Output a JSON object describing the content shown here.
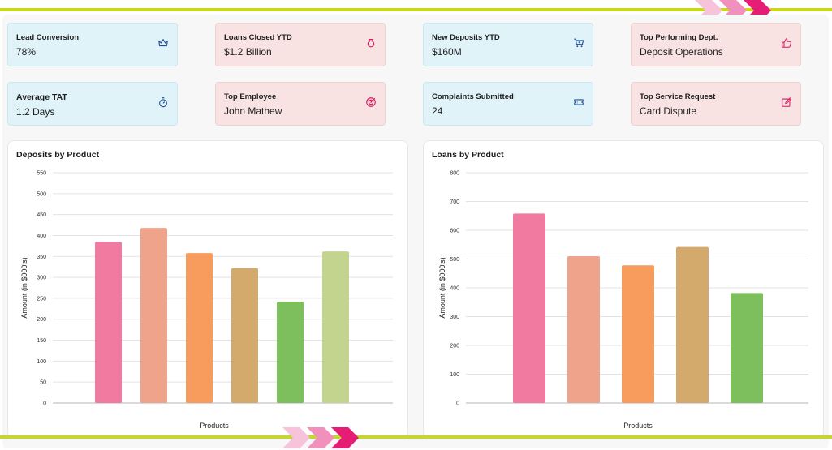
{
  "kpis": [
    {
      "label": "Lead Conversion",
      "value": "78%",
      "icon": "crown-icon",
      "tone": "blue"
    },
    {
      "label": "Loans Closed YTD",
      "value": "$1.2 Billion",
      "icon": "money-bag-icon",
      "tone": "pink"
    },
    {
      "label": "New Deposits YTD",
      "value": "$160M",
      "icon": "cart-plus-icon",
      "tone": "blue"
    },
    {
      "label": "Top Performing Dept.",
      "value": "Deposit Operations",
      "icon": "thumbs-up-icon",
      "tone": "pink"
    },
    {
      "label": "Average TAT",
      "value": "1.2 Days",
      "icon": "stopwatch-icon",
      "tone": "blue"
    },
    {
      "label": "Top Employee",
      "value": "John Mathew",
      "icon": "target-icon",
      "tone": "pink"
    },
    {
      "label": "Complaints Submitted",
      "value": "24",
      "icon": "ticket-icon",
      "tone": "blue"
    },
    {
      "label": "Top Service Request",
      "value": "Card Dispute",
      "icon": "edit-icon",
      "tone": "pink"
    }
  ],
  "colors": {
    "accent_line": "#c8d81c",
    "chevrons": [
      "#f7c3da",
      "#f290bd",
      "#e61d74"
    ],
    "icon_blue": "#1f4f9a",
    "icon_pink": "#d81b60",
    "grid": "#e3e3e3"
  },
  "chart_data": [
    {
      "type": "bar",
      "title": "Deposits by Product",
      "xlabel": "Products",
      "ylabel": "Amount (in $000's)",
      "ylim": [
        0,
        550
      ],
      "yticks": [
        0,
        50,
        100,
        150,
        200,
        250,
        300,
        350,
        400,
        450,
        500,
        550
      ],
      "grid": true,
      "values": [
        385,
        418,
        358,
        322,
        242,
        362
      ],
      "colors": [
        "#f07aa0",
        "#eea38a",
        "#f79c5c",
        "#d4aa6c",
        "#7cbf5c",
        "#c3d48e"
      ]
    },
    {
      "type": "bar",
      "title": "Loans by Product",
      "xlabel": "Products",
      "ylabel": "Amount (in $000's)",
      "ylim": [
        0,
        800
      ],
      "yticks": [
        0,
        100,
        200,
        300,
        400,
        500,
        600,
        700,
        800
      ],
      "grid": true,
      "values": [
        658,
        510,
        478,
        542,
        382
      ],
      "colors": [
        "#f07aa0",
        "#eea38a",
        "#f79c5c",
        "#d4aa6c",
        "#7cbf5c"
      ]
    }
  ]
}
